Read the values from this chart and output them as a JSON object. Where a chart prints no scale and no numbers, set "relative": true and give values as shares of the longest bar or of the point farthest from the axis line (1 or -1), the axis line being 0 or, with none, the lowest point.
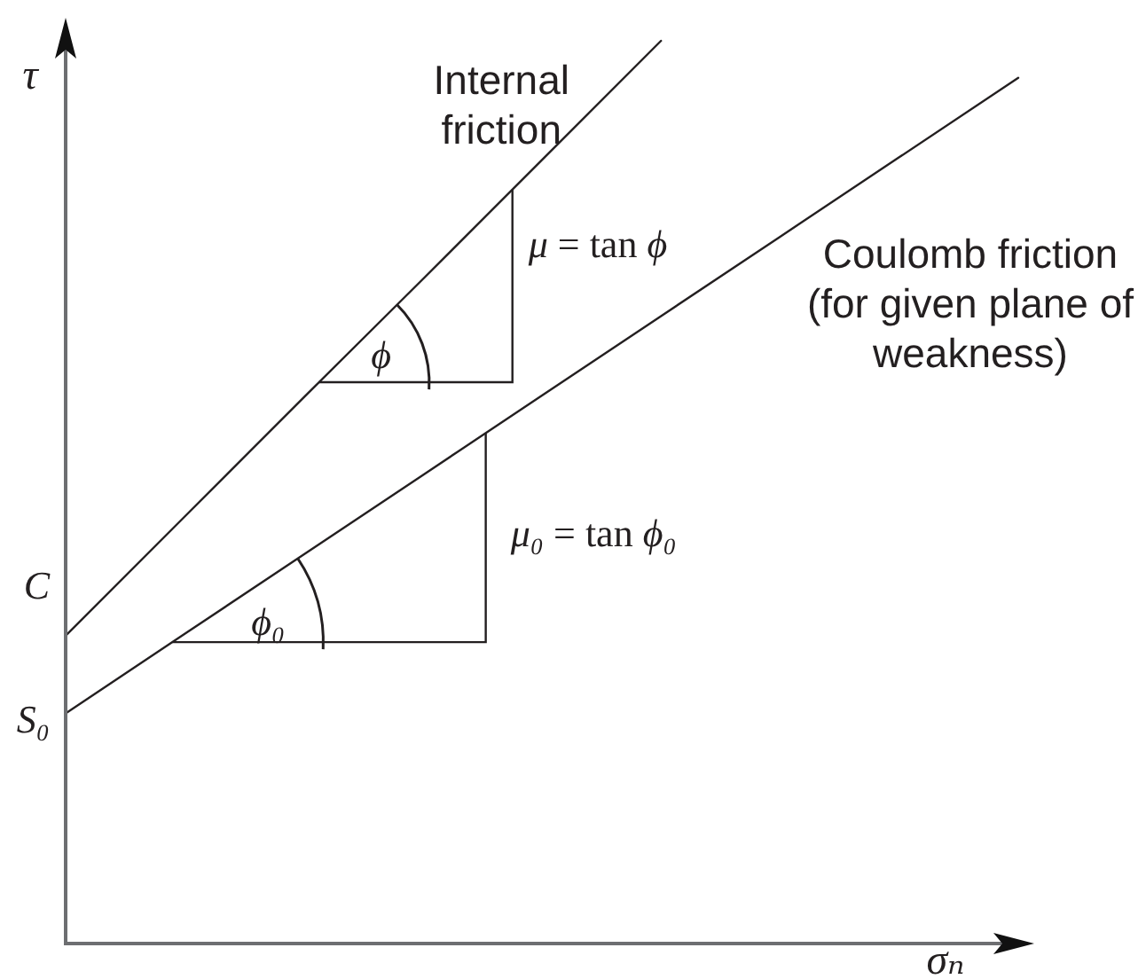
{
  "chart_data": {
    "type": "line",
    "relative": true,
    "xlabel": "σₙ",
    "ylabel": "τ",
    "line_style": "solid",
    "categories": [
      null,
      null,
      null,
      null,
      null,
      null,
      null,
      null,
      null
    ],
    "series": [
      {
        "name": "Internal friction",
        "color": "#231f20",
        "values": [
          0.341,
          0.473,
          0.605,
          0.736,
          0.868,
          1,
          null,
          null,
          null
        ]
      },
      {
        "name": "Coulomb friction (for given plane of weakness)",
        "color": "#231f20",
        "values": [
          0.255,
          0.343,
          0.431,
          0.519,
          0.607,
          0.695,
          0.783,
          0.871,
          0.959
        ]
      }
    ],
    "annotations": [
      "C",
      "S₀",
      "ϕ",
      "μ = tan ϕ",
      "ϕ₀",
      "μ₀ = tan ϕ₀"
    ]
  }
}
